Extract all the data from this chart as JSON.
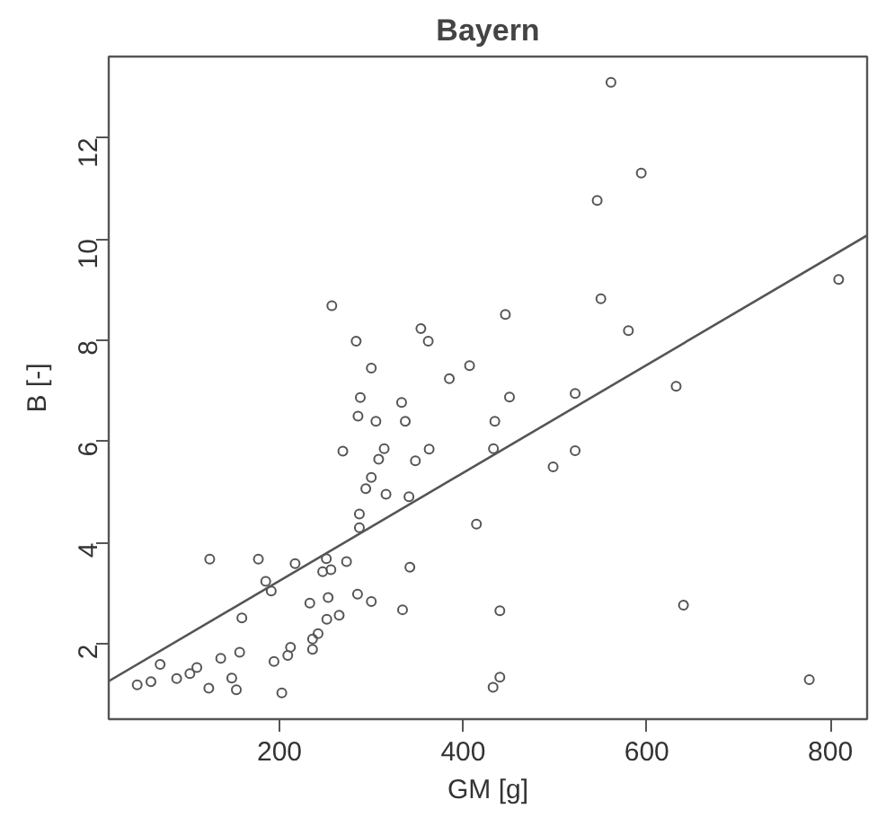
{
  "chart_data": {
    "type": "scatter",
    "title": "Bayern",
    "xlabel": "GM [g]",
    "ylabel": "B [-]",
    "xlim": [
      14,
      840
    ],
    "ylim": [
      0.52,
      13.6
    ],
    "xticks": [
      200,
      400,
      600,
      800
    ],
    "yticks": [
      2,
      4,
      6,
      8,
      10,
      12
    ],
    "grid": false,
    "marker": "circle",
    "series": [
      {
        "color": "#555555",
        "x": [
          257,
          283.5,
          354,
          362,
          300,
          385,
          407,
          288,
          333,
          285.5,
          305,
          337,
          269,
          314,
          308,
          348,
          363,
          300,
          294,
          316,
          341,
          287,
          287,
          414.5,
          124,
          177,
          217,
          251,
          273,
          185,
          191,
          247,
          256,
          342,
          159,
          233,
          253,
          285,
          300,
          334,
          251.5,
          265,
          242,
          236,
          236,
          212,
          209,
          194,
          156.6,
          136,
          148,
          110,
          102.4,
          88,
          70,
          60,
          45,
          123,
          153,
          202.5,
          432.6,
          440,
          777,
          561,
          594,
          546,
          550,
          580,
          446,
          450.5,
          522,
          632,
          434.5,
          433,
          498,
          522,
          440,
          640,
          809
        ],
        "values": [
          8.68,
          7.98,
          8.23,
          7.98,
          7.45,
          7.24,
          7.5,
          6.87,
          6.77,
          6.5,
          6.4,
          6.4,
          5.81,
          5.86,
          5.65,
          5.62,
          5.85,
          5.29,
          5.07,
          4.96,
          4.91,
          4.57,
          4.3,
          4.37,
          3.68,
          3.68,
          3.59,
          3.69,
          3.63,
          3.24,
          3.05,
          3.43,
          3.47,
          3.52,
          2.52,
          2.81,
          2.92,
          2.99,
          2.84,
          2.68,
          2.49,
          2.57,
          2.21,
          2.1,
          1.9,
          1.94,
          1.78,
          1.66,
          1.84,
          1.72,
          1.33,
          1.54,
          1.42,
          1.32,
          1.6,
          1.26,
          1.2,
          1.13,
          1.1,
          1.04,
          1.15,
          1.35,
          1.3,
          13.09,
          11.3,
          10.76,
          8.82,
          8.19,
          8.51,
          6.88,
          6.95,
          7.09,
          6.4,
          5.86,
          5.5,
          5.82,
          2.66,
          2.77,
          9.2
        ]
      },
      {
        "type": "line",
        "color": "#555555",
        "marker": "none",
        "x": [
          14,
          840
        ],
        "values": [
          1.27,
          10.07
        ]
      }
    ]
  }
}
